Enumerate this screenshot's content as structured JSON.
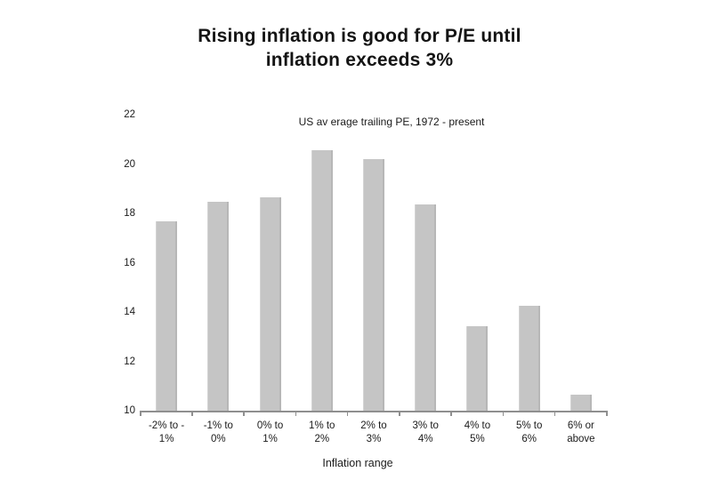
{
  "title": {
    "line1": "Rising inflation is good for P/E until",
    "line2": "inflation exceeds 3%"
  },
  "chart_data": {
    "type": "bar",
    "title": "Rising inflation is good for P/E until inflation exceeds 3%",
    "subtitle": "US av erage trailing PE, 1972 - present",
    "xlabel": "Inflation range",
    "ylabel": "",
    "categories": [
      "-2% to -1%",
      "-1% to 0%",
      "0% to 1%",
      "1% to 2%",
      "2% to 3%",
      "3% to 4%",
      "4% to 5%",
      "5% to 6%",
      "6% or above"
    ],
    "category_label_lines": [
      [
        "-2% to -",
        "1%"
      ],
      [
        "-1% to",
        "0%"
      ],
      [
        "0% to",
        "1%"
      ],
      [
        "1% to",
        "2%"
      ],
      [
        "2% to",
        "3%"
      ],
      [
        "3% to",
        "4%"
      ],
      [
        "4% to",
        "5%"
      ],
      [
        "5% to",
        "6%"
      ],
      [
        "6% or",
        "above"
      ]
    ],
    "values": [
      17.7,
      18.5,
      18.7,
      20.6,
      20.25,
      18.4,
      13.45,
      14.3,
      10.7
    ],
    "ylim": [
      10,
      22
    ],
    "yticks": [
      10,
      12,
      14,
      16,
      18,
      20,
      22
    ],
    "grid": false,
    "legend_position": "none",
    "bar_color": "#c5c5c5",
    "axis_color": "#8f8f8f",
    "text_color": "#1a1a1a"
  }
}
